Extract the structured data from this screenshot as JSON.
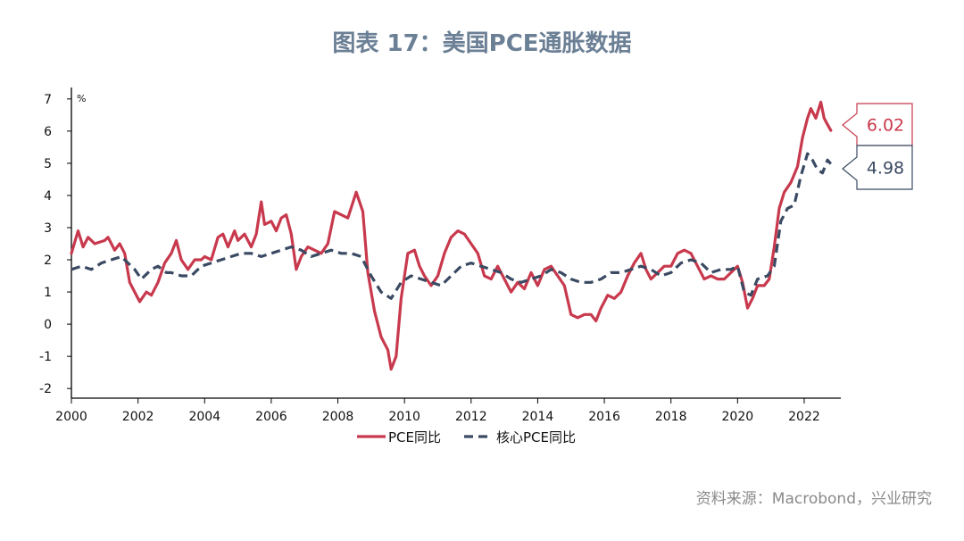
{
  "page": {
    "title": "图表 17：美国PCE通胀数据",
    "source": "资料来源：Macrobond，兴业研究"
  },
  "colors": {
    "pce": "#c8394d",
    "core": "#3a4a63",
    "axis": "#000000"
  },
  "chart_data": {
    "type": "line",
    "unit_label": "%",
    "xlabel": "",
    "ylabel": "",
    "xlim": [
      2000,
      2023.1
    ],
    "ylim": [
      -2.3,
      7.3
    ],
    "x_ticks": [
      "2000",
      "2002",
      "2004",
      "2006",
      "2008",
      "2010",
      "2012",
      "2014",
      "2016",
      "2018",
      "2020",
      "2022"
    ],
    "y_ticks": [
      "7",
      "6",
      "5",
      "4",
      "3",
      "2",
      "1",
      "0",
      "-1",
      "-2"
    ],
    "legend_position": "bottom",
    "series": [
      {
        "name": "PCE同比",
        "style": "solid",
        "last_value_label": "6.02",
        "points": [
          [
            2000.0,
            2.2
          ],
          [
            2000.2,
            2.9
          ],
          [
            2000.35,
            2.4
          ],
          [
            2000.5,
            2.7
          ],
          [
            2000.7,
            2.5
          ],
          [
            2001.0,
            2.6
          ],
          [
            2001.1,
            2.7
          ],
          [
            2001.3,
            2.3
          ],
          [
            2001.45,
            2.5
          ],
          [
            2001.6,
            2.2
          ],
          [
            2001.75,
            1.3
          ],
          [
            2001.9,
            1.0
          ],
          [
            2002.05,
            0.7
          ],
          [
            2002.25,
            1.0
          ],
          [
            2002.4,
            0.9
          ],
          [
            2002.6,
            1.3
          ],
          [
            2002.8,
            1.9
          ],
          [
            2003.0,
            2.2
          ],
          [
            2003.15,
            2.6
          ],
          [
            2003.3,
            2.0
          ],
          [
            2003.5,
            1.7
          ],
          [
            2003.7,
            2.0
          ],
          [
            2003.9,
            2.0
          ],
          [
            2004.0,
            2.1
          ],
          [
            2004.2,
            2.0
          ],
          [
            2004.4,
            2.7
          ],
          [
            2004.55,
            2.8
          ],
          [
            2004.7,
            2.4
          ],
          [
            2004.9,
            2.9
          ],
          [
            2005.0,
            2.6
          ],
          [
            2005.2,
            2.8
          ],
          [
            2005.4,
            2.4
          ],
          [
            2005.55,
            2.8
          ],
          [
            2005.7,
            3.8
          ],
          [
            2005.8,
            3.1
          ],
          [
            2006.0,
            3.2
          ],
          [
            2006.15,
            2.9
          ],
          [
            2006.3,
            3.3
          ],
          [
            2006.45,
            3.4
          ],
          [
            2006.6,
            2.8
          ],
          [
            2006.75,
            1.7
          ],
          [
            2006.9,
            2.1
          ],
          [
            2007.1,
            2.4
          ],
          [
            2007.3,
            2.3
          ],
          [
            2007.5,
            2.2
          ],
          [
            2007.7,
            2.5
          ],
          [
            2007.9,
            3.5
          ],
          [
            2008.1,
            3.4
          ],
          [
            2008.3,
            3.3
          ],
          [
            2008.55,
            4.1
          ],
          [
            2008.75,
            3.5
          ],
          [
            2008.9,
            1.6
          ],
          [
            2009.1,
            0.4
          ],
          [
            2009.3,
            -0.4
          ],
          [
            2009.5,
            -0.8
          ],
          [
            2009.6,
            -1.4
          ],
          [
            2009.75,
            -1.0
          ],
          [
            2009.9,
            0.8
          ],
          [
            2010.1,
            2.2
          ],
          [
            2010.3,
            2.3
          ],
          [
            2010.45,
            1.8
          ],
          [
            2010.6,
            1.5
          ],
          [
            2010.8,
            1.2
          ],
          [
            2011.0,
            1.5
          ],
          [
            2011.2,
            2.2
          ],
          [
            2011.4,
            2.7
          ],
          [
            2011.6,
            2.9
          ],
          [
            2011.8,
            2.8
          ],
          [
            2012.0,
            2.5
          ],
          [
            2012.2,
            2.2
          ],
          [
            2012.4,
            1.5
          ],
          [
            2012.6,
            1.4
          ],
          [
            2012.8,
            1.8
          ],
          [
            2013.0,
            1.4
          ],
          [
            2013.2,
            1.0
          ],
          [
            2013.4,
            1.3
          ],
          [
            2013.6,
            1.1
          ],
          [
            2013.8,
            1.6
          ],
          [
            2014.0,
            1.2
          ],
          [
            2014.2,
            1.7
          ],
          [
            2014.4,
            1.8
          ],
          [
            2014.6,
            1.5
          ],
          [
            2014.8,
            1.2
          ],
          [
            2015.0,
            0.3
          ],
          [
            2015.2,
            0.2
          ],
          [
            2015.4,
            0.3
          ],
          [
            2015.6,
            0.3
          ],
          [
            2015.75,
            0.1
          ],
          [
            2015.9,
            0.5
          ],
          [
            2016.1,
            0.9
          ],
          [
            2016.3,
            0.8
          ],
          [
            2016.5,
            1.0
          ],
          [
            2016.7,
            1.5
          ],
          [
            2016.9,
            1.9
          ],
          [
            2017.1,
            2.2
          ],
          [
            2017.25,
            1.7
          ],
          [
            2017.4,
            1.4
          ],
          [
            2017.6,
            1.6
          ],
          [
            2017.8,
            1.8
          ],
          [
            2018.0,
            1.8
          ],
          [
            2018.2,
            2.2
          ],
          [
            2018.4,
            2.3
          ],
          [
            2018.6,
            2.2
          ],
          [
            2018.8,
            1.8
          ],
          [
            2019.0,
            1.4
          ],
          [
            2019.2,
            1.5
          ],
          [
            2019.4,
            1.4
          ],
          [
            2019.6,
            1.4
          ],
          [
            2019.8,
            1.6
          ],
          [
            2020.0,
            1.8
          ],
          [
            2020.15,
            1.3
          ],
          [
            2020.3,
            0.5
          ],
          [
            2020.45,
            0.8
          ],
          [
            2020.6,
            1.2
          ],
          [
            2020.8,
            1.2
          ],
          [
            2020.95,
            1.4
          ],
          [
            2021.1,
            2.4
          ],
          [
            2021.25,
            3.6
          ],
          [
            2021.4,
            4.1
          ],
          [
            2021.6,
            4.4
          ],
          [
            2021.8,
            4.9
          ],
          [
            2021.95,
            5.8
          ],
          [
            2022.1,
            6.4
          ],
          [
            2022.2,
            6.7
          ],
          [
            2022.35,
            6.4
          ],
          [
            2022.5,
            6.9
          ],
          [
            2022.6,
            6.4
          ],
          [
            2022.7,
            6.2
          ],
          [
            2022.8,
            6.02
          ]
        ]
      },
      {
        "name": "核心PCE同比",
        "style": "dashed",
        "last_value_label": "4.98",
        "points": [
          [
            2000.0,
            1.7
          ],
          [
            2000.3,
            1.8
          ],
          [
            2000.6,
            1.7
          ],
          [
            2000.9,
            1.9
          ],
          [
            2001.2,
            2.0
          ],
          [
            2001.5,
            2.1
          ],
          [
            2001.7,
            1.9
          ],
          [
            2001.9,
            1.7
          ],
          [
            2002.1,
            1.4
          ],
          [
            2002.4,
            1.7
          ],
          [
            2002.6,
            1.8
          ],
          [
            2002.85,
            1.6
          ],
          [
            2003.0,
            1.6
          ],
          [
            2003.3,
            1.5
          ],
          [
            2003.6,
            1.5
          ],
          [
            2003.9,
            1.8
          ],
          [
            2004.2,
            1.9
          ],
          [
            2004.5,
            2.0
          ],
          [
            2004.8,
            2.1
          ],
          [
            2005.1,
            2.2
          ],
          [
            2005.4,
            2.2
          ],
          [
            2005.7,
            2.1
          ],
          [
            2006.0,
            2.2
          ],
          [
            2006.3,
            2.3
          ],
          [
            2006.6,
            2.4
          ],
          [
            2006.9,
            2.3
          ],
          [
            2007.2,
            2.1
          ],
          [
            2007.5,
            2.2
          ],
          [
            2007.8,
            2.3
          ],
          [
            2008.1,
            2.2
          ],
          [
            2008.4,
            2.2
          ],
          [
            2008.7,
            2.1
          ],
          [
            2009.0,
            1.5
          ],
          [
            2009.3,
            1.0
          ],
          [
            2009.6,
            0.8
          ],
          [
            2009.9,
            1.3
          ],
          [
            2010.2,
            1.5
          ],
          [
            2010.5,
            1.4
          ],
          [
            2010.8,
            1.3
          ],
          [
            2011.1,
            1.2
          ],
          [
            2011.4,
            1.5
          ],
          [
            2011.7,
            1.8
          ],
          [
            2012.0,
            1.9
          ],
          [
            2012.3,
            1.8
          ],
          [
            2012.6,
            1.7
          ],
          [
            2012.9,
            1.6
          ],
          [
            2013.2,
            1.4
          ],
          [
            2013.5,
            1.3
          ],
          [
            2013.8,
            1.4
          ],
          [
            2014.1,
            1.5
          ],
          [
            2014.4,
            1.7
          ],
          [
            2014.7,
            1.6
          ],
          [
            2015.0,
            1.4
          ],
          [
            2015.3,
            1.3
          ],
          [
            2015.6,
            1.3
          ],
          [
            2015.9,
            1.4
          ],
          [
            2016.2,
            1.6
          ],
          [
            2016.5,
            1.6
          ],
          [
            2016.8,
            1.7
          ],
          [
            2017.1,
            1.8
          ],
          [
            2017.4,
            1.7
          ],
          [
            2017.7,
            1.5
          ],
          [
            2018.0,
            1.6
          ],
          [
            2018.3,
            1.9
          ],
          [
            2018.6,
            2.0
          ],
          [
            2018.9,
            1.9
          ],
          [
            2019.2,
            1.6
          ],
          [
            2019.5,
            1.7
          ],
          [
            2019.8,
            1.7
          ],
          [
            2020.0,
            1.8
          ],
          [
            2020.2,
            1.0
          ],
          [
            2020.4,
            0.9
          ],
          [
            2020.6,
            1.4
          ],
          [
            2020.9,
            1.5
          ],
          [
            2021.1,
            1.8
          ],
          [
            2021.3,
            3.2
          ],
          [
            2021.5,
            3.6
          ],
          [
            2021.7,
            3.7
          ],
          [
            2021.9,
            4.6
          ],
          [
            2022.1,
            5.3
          ],
          [
            2022.25,
            5.1
          ],
          [
            2022.4,
            4.8
          ],
          [
            2022.55,
            4.7
          ],
          [
            2022.7,
            5.1
          ],
          [
            2022.8,
            4.98
          ]
        ]
      }
    ]
  }
}
